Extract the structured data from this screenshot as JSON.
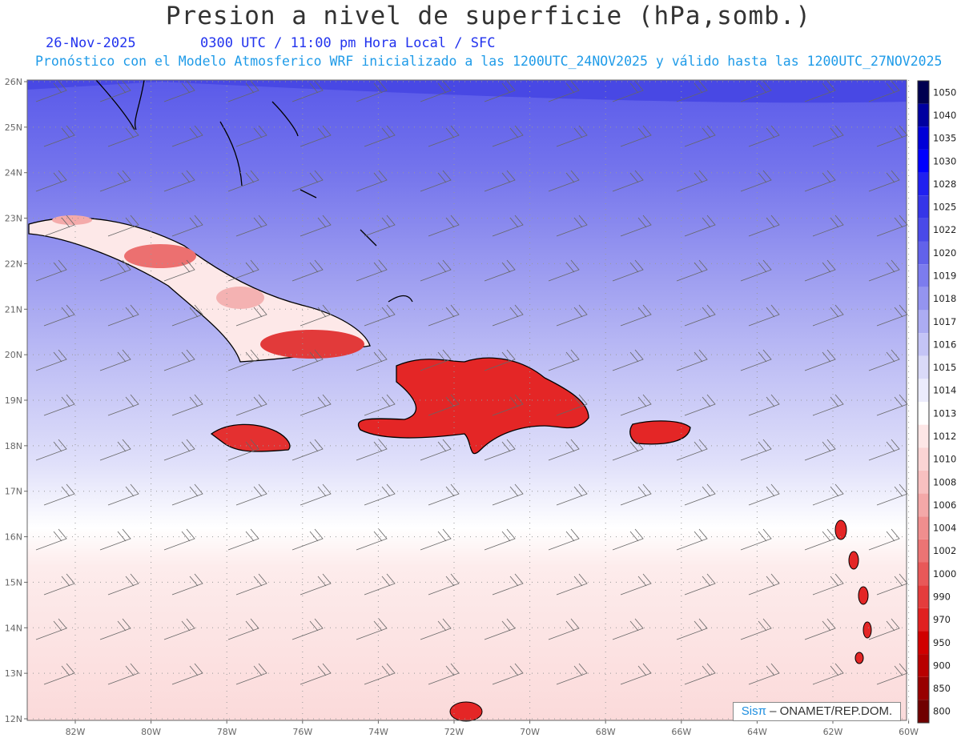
{
  "header": {
    "title": "Presion a nivel de superficie (hPa,somb.)",
    "date": "26-Nov-2025",
    "time": "0300 UTC / 11:00 pm Hora Local / SFC",
    "forecast": "Pronóstico con el Modelo Atmosferico WRF inicializado a las 1200UTC_24NOV2025 y válido hasta las  1200UTC_27NOV2025"
  },
  "map": {
    "lat_labels": [
      "26N",
      "25N",
      "24N",
      "23N",
      "22N",
      "21N",
      "20N",
      "19N",
      "18N",
      "17N",
      "16N",
      "15N",
      "14N",
      "13N",
      "12N"
    ],
    "lon_labels": [
      "82W",
      "80W",
      "78W",
      "76W",
      "74W",
      "72W",
      "70W",
      "68W",
      "66W",
      "64W",
      "62W",
      "60W"
    ],
    "regions": [
      "Cuba",
      "Jamaica",
      "Hispaniola",
      "Puerto Rico",
      "Bahamas",
      "Lesser Antilles"
    ]
  },
  "colorbar": {
    "levels": [
      "1050",
      "1040",
      "1035",
      "1030",
      "1028",
      "1025",
      "1022",
      "1020",
      "1019",
      "1018",
      "1017",
      "1016",
      "1015",
      "1014",
      "1013",
      "1012",
      "1010",
      "1008",
      "1006",
      "1004",
      "1002",
      "1000",
      "990",
      "970",
      "950",
      "900",
      "850",
      "800"
    ],
    "colors": [
      "#000050",
      "#0000a0",
      "#0000d8",
      "#0000ff",
      "#2020f0",
      "#3535e8",
      "#4a4ae8",
      "#6262ea",
      "#7c7cee",
      "#9494f0",
      "#acacf2",
      "#c4c4f6",
      "#dadaf8",
      "#ececfc",
      "#ffffff",
      "#fde6e6",
      "#fbd4d4",
      "#f8c0c0",
      "#f4a8a8",
      "#f08e8e",
      "#ec7474",
      "#e85858",
      "#e43c3c",
      "#e02020",
      "#d00000",
      "#b80000",
      "#980000",
      "#700000"
    ]
  },
  "credit": {
    "brand": "Sisπ",
    "text": "– ONAMET/REP.DOM."
  }
}
